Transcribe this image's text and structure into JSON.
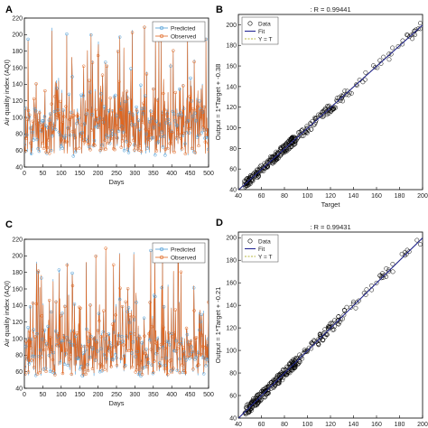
{
  "colors": {
    "predicted": "#4a9bd6",
    "observed": "#e0651e",
    "fit": "#1c1f8f",
    "identity": "#b8b840",
    "data_marker": "#000000",
    "axis": "#000000"
  },
  "chart_data": [
    {
      "panel_label": "A",
      "type": "line",
      "title": "",
      "xlabel": "Days",
      "ylabel": "Air quality index (AQI)",
      "xlim": [
        0,
        500
      ],
      "ylim": [
        40,
        220
      ],
      "xticks": [
        "0",
        "50",
        "100",
        "150",
        "200",
        "250",
        "300",
        "350",
        "400",
        "450",
        "500"
      ],
      "yticks": [
        "40",
        "60",
        "80",
        "100",
        "120",
        "140",
        "160",
        "180",
        "200",
        "220"
      ],
      "legend": "top-right",
      "series": [
        {
          "name": "Predicted",
          "marker": "circle"
        },
        {
          "name": "Observed",
          "marker": "circle"
        }
      ],
      "seed": 11
    },
    {
      "panel_label": "B",
      "type": "scatter",
      "title": ": R = 0.99441",
      "xlabel": "Target",
      "ylabel": "Output = 1*Target + -0.38",
      "xlim": [
        40,
        200
      ],
      "ylim": [
        40,
        210
      ],
      "xticks": [
        "40",
        "60",
        "80",
        "100",
        "120",
        "140",
        "160",
        "180",
        "200"
      ],
      "yticks": [
        "40",
        "60",
        "80",
        "100",
        "120",
        "140",
        "160",
        "180",
        "200"
      ],
      "legend": "top-left",
      "series": [
        {
          "name": "Data",
          "marker": "circle"
        },
        {
          "name": "Fit",
          "line": "solid"
        },
        {
          "name": "Y = T",
          "line": "dotted"
        }
      ],
      "fit": {
        "slope": 1,
        "intercept": -0.38
      },
      "seed": 23
    },
    {
      "panel_label": "C",
      "type": "line",
      "title": "",
      "xlabel": "Days",
      "ylabel": "Air quality index (AQI)",
      "xlim": [
        0,
        500
      ],
      "ylim": [
        40,
        220
      ],
      "xticks": [
        "0",
        "50",
        "100",
        "150",
        "200",
        "250",
        "300",
        "350",
        "400",
        "450",
        "500"
      ],
      "yticks": [
        "40",
        "60",
        "80",
        "100",
        "120",
        "140",
        "160",
        "180",
        "200",
        "220"
      ],
      "legend": "top-right",
      "series": [
        {
          "name": "Predicted",
          "marker": "circle"
        },
        {
          "name": "Observed",
          "marker": "circle"
        }
      ],
      "seed": 37
    },
    {
      "panel_label": "D",
      "type": "scatter",
      "title": ": R = 0.99431",
      "xlabel": "Target",
      "ylabel": "Output = 1*Target + -0.21",
      "xlim": [
        40,
        200
      ],
      "ylim": [
        40,
        205
      ],
      "xticks": [
        "40",
        "60",
        "80",
        "100",
        "120",
        "140",
        "160",
        "180",
        "200"
      ],
      "yticks": [
        "40",
        "60",
        "80",
        "100",
        "120",
        "140",
        "160",
        "180",
        "200"
      ],
      "legend": "top-left",
      "series": [
        {
          "name": "Data",
          "marker": "circle"
        },
        {
          "name": "Fit",
          "line": "solid"
        },
        {
          "name": "Y = T",
          "line": "dotted"
        }
      ],
      "fit": {
        "slope": 1,
        "intercept": -0.21
      },
      "seed": 53
    }
  ]
}
